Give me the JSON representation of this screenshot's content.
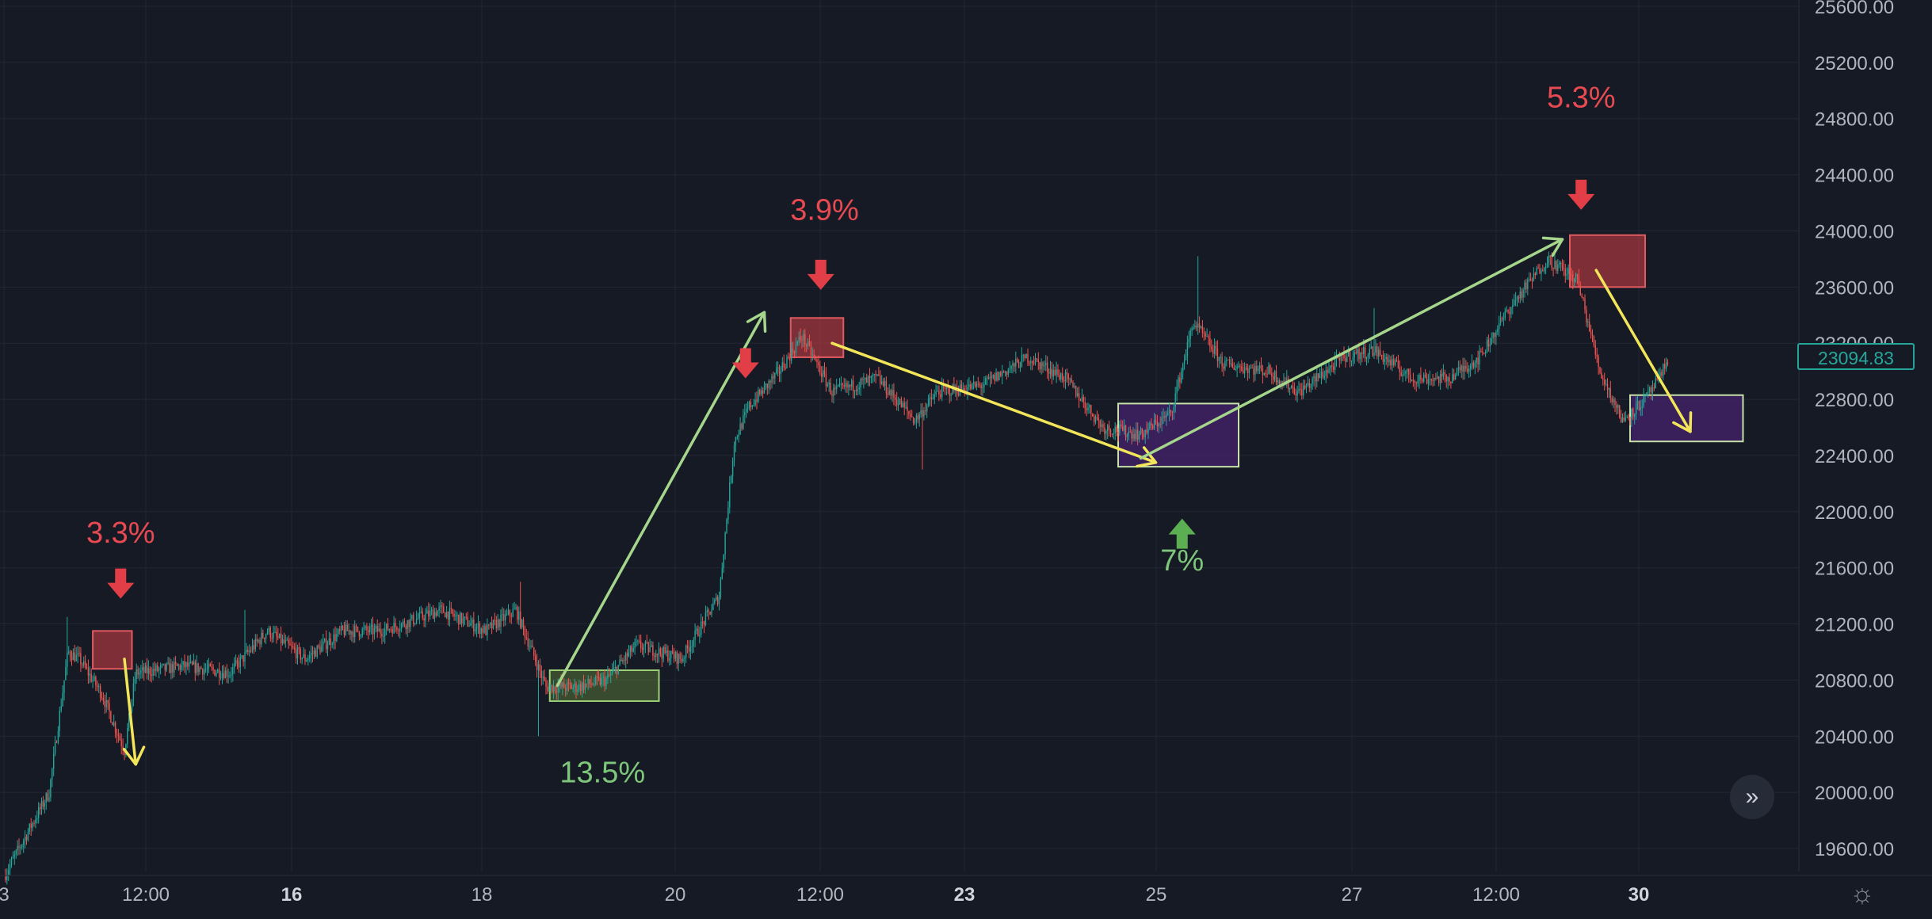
{
  "chart_data": {
    "type": "candlestick",
    "title": "",
    "y_axis": {
      "ticks": [
        "25600.00",
        "25200.00",
        "24800.00",
        "24400.00",
        "24000.00",
        "23600.00",
        "23200.00",
        "22800.00",
        "22400.00",
        "22000.00",
        "21600.00",
        "21200.00",
        "20800.00",
        "20400.00",
        "20000.00",
        "19600.00"
      ],
      "range": [
        19400,
        25600
      ]
    },
    "x_axis": {
      "ticks": [
        {
          "label": "3",
          "bold": false
        },
        {
          "label": "12:00",
          "bold": false
        },
        {
          "label": "16",
          "bold": true
        },
        {
          "label": "18",
          "bold": false
        },
        {
          "label": "20",
          "bold": false
        },
        {
          "label": "12:00",
          "bold": false
        },
        {
          "label": "23",
          "bold": true
        },
        {
          "label": "25",
          "bold": false
        },
        {
          "label": "27",
          "bold": false
        },
        {
          "label": "12:00",
          "bold": false
        },
        {
          "label": "30",
          "bold": true
        }
      ]
    },
    "price_anchors": [
      {
        "t": 0.0,
        "p": 19400
      },
      {
        "t": 0.6,
        "p": 20000
      },
      {
        "t": 0.85,
        "p": 21000
      },
      {
        "t": 1.0,
        "p": 20950
      },
      {
        "t": 1.3,
        "p": 20700
      },
      {
        "t": 1.6,
        "p": 20300
      },
      {
        "t": 1.75,
        "p": 20850
      },
      {
        "t": 2.4,
        "p": 20900
      },
      {
        "t": 3.0,
        "p": 20850
      },
      {
        "t": 3.5,
        "p": 21150
      },
      {
        "t": 4.0,
        "p": 20950
      },
      {
        "t": 4.5,
        "p": 21150
      },
      {
        "t": 5.0,
        "p": 21150
      },
      {
        "t": 5.3,
        "p": 21200
      },
      {
        "t": 5.8,
        "p": 21300
      },
      {
        "t": 6.4,
        "p": 21150
      },
      {
        "t": 6.8,
        "p": 21300
      },
      {
        "t": 7.2,
        "p": 20750
      },
      {
        "t": 7.6,
        "p": 20750
      },
      {
        "t": 8.0,
        "p": 20800
      },
      {
        "t": 8.4,
        "p": 21050
      },
      {
        "t": 9.0,
        "p": 20950
      },
      {
        "t": 9.5,
        "p": 21400
      },
      {
        "t": 9.7,
        "p": 22500
      },
      {
        "t": 9.9,
        "p": 22750
      },
      {
        "t": 10.3,
        "p": 23000
      },
      {
        "t": 10.6,
        "p": 23250
      },
      {
        "t": 11.0,
        "p": 22850
      },
      {
        "t": 11.6,
        "p": 22950
      },
      {
        "t": 12.1,
        "p": 22650
      },
      {
        "t": 12.4,
        "p": 22850
      },
      {
        "t": 13.0,
        "p": 22900
      },
      {
        "t": 13.6,
        "p": 23100
      },
      {
        "t": 14.1,
        "p": 22950
      },
      {
        "t": 14.6,
        "p": 22600
      },
      {
        "t": 15.1,
        "p": 22550
      },
      {
        "t": 15.5,
        "p": 22700
      },
      {
        "t": 15.8,
        "p": 23350
      },
      {
        "t": 16.2,
        "p": 23050
      },
      {
        "t": 16.8,
        "p": 23000
      },
      {
        "t": 17.2,
        "p": 22850
      },
      {
        "t": 17.8,
        "p": 23100
      },
      {
        "t": 18.2,
        "p": 23150
      },
      {
        "t": 18.7,
        "p": 22950
      },
      {
        "t": 19.2,
        "p": 22950
      },
      {
        "t": 19.6,
        "p": 23100
      },
      {
        "t": 20.0,
        "p": 23450
      },
      {
        "t": 20.5,
        "p": 23800
      },
      {
        "t": 20.9,
        "p": 23650
      },
      {
        "t": 21.2,
        "p": 23000
      },
      {
        "t": 21.5,
        "p": 22650
      },
      {
        "t": 21.8,
        "p": 22800
      },
      {
        "t": 22.0,
        "p": 22950
      },
      {
        "t": 22.1,
        "p": 23094.83
      }
    ],
    "spikes": [
      {
        "t": 0.85,
        "p": 21250
      },
      {
        "t": 15.85,
        "p": 23820
      },
      {
        "t": 18.2,
        "p": 23450
      },
      {
        "t": 7.1,
        "p": 20400
      },
      {
        "t": 12.2,
        "p": 22300
      },
      {
        "t": 3.2,
        "p": 21300
      },
      {
        "t": 6.85,
        "p": 21500
      }
    ],
    "zones": [
      {
        "color": "red",
        "t0": 1.18,
        "t1": 1.7,
        "p0": 20880,
        "p1": 21150
      },
      {
        "color": "green",
        "t0": 7.25,
        "t1": 8.7,
        "p0": 20650,
        "p1": 20870
      },
      {
        "color": "red",
        "t0": 10.45,
        "t1": 11.15,
        "p0": 23100,
        "p1": 23380
      },
      {
        "color": "purple",
        "t0": 14.8,
        "t1": 16.4,
        "p0": 22320,
        "p1": 22770
      },
      {
        "color": "red",
        "t0": 20.8,
        "t1": 21.8,
        "p0": 23600,
        "p1": 23970
      },
      {
        "color": "purple",
        "t0": 21.6,
        "t1": 23.1,
        "p0": 22500,
        "p1": 22830
      }
    ],
    "trend_arrows": [
      {
        "color": "yellow",
        "from": {
          "t": 1.6,
          "p": 20950
        },
        "to": {
          "t": 1.75,
          "p": 20200
        }
      },
      {
        "color": "green",
        "from": {
          "t": 7.35,
          "p": 20760
        },
        "to": {
          "t": 10.1,
          "p": 23420
        }
      },
      {
        "color": "yellow",
        "from": {
          "t": 11.0,
          "p": 23200
        },
        "to": {
          "t": 15.3,
          "p": 22350
        }
      },
      {
        "color": "green",
        "from": {
          "t": 15.1,
          "p": 22380
        },
        "to": {
          "t": 20.7,
          "p": 23940
        }
      },
      {
        "color": "yellow",
        "from": {
          "t": 21.15,
          "p": 23720
        },
        "to": {
          "t": 22.4,
          "p": 22570
        }
      }
    ],
    "markers": [
      {
        "kind": "down",
        "t": 1.55,
        "p": 21380
      },
      {
        "kind": "down",
        "t": 9.85,
        "p": 22950
      },
      {
        "kind": "down",
        "t": 10.85,
        "p": 23580
      },
      {
        "kind": "up",
        "t": 15.65,
        "p": 21950
      },
      {
        "kind": "down",
        "t": 20.95,
        "p": 24150
      }
    ],
    "annotations": [
      {
        "text": "3.3%",
        "color": "red",
        "t": 1.55,
        "p": 21780
      },
      {
        "text": "13.5%",
        "color": "green",
        "t": 7.95,
        "p": 20070
      },
      {
        "text": "3.9%",
        "color": "red",
        "t": 10.9,
        "p": 24080
      },
      {
        "text": "7%",
        "color": "green",
        "t": 15.65,
        "p": 21580
      },
      {
        "text": "5.3%",
        "color": "red",
        "t": 20.95,
        "p": 24880
      }
    ],
    "last_price": "23094.83"
  },
  "colors": {
    "background": "#161a25",
    "grid": "#232734",
    "axis_text": "#b2b5be",
    "candle_up": "#26a69a",
    "candle_down": "#ef5350",
    "red_label": "#e84a52",
    "green_label": "#7ec77a"
  },
  "controls": {
    "scroll_icon": "double-chevron-right-icon",
    "settings_icon": "gear-icon"
  }
}
